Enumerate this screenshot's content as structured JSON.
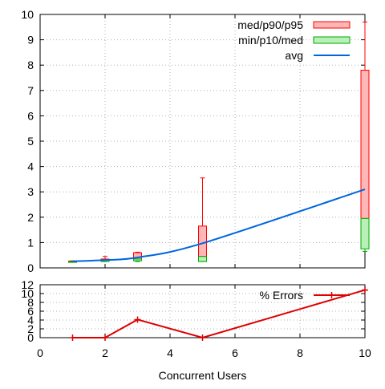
{
  "chart_data": [
    {
      "type": "box",
      "title": "",
      "xlabel": "",
      "ylabel": "",
      "xlim": [
        0,
        10
      ],
      "ylim": [
        0,
        10
      ],
      "xticks": [],
      "yticks": [
        0,
        1,
        2,
        3,
        4,
        5,
        6,
        7,
        8,
        9,
        10
      ],
      "grid": true,
      "legend_position": "top-right",
      "legend": [
        "med/p90/p95",
        "min/p10/med",
        "avg"
      ],
      "x": [
        1,
        2,
        3,
        5,
        10
      ],
      "series": [
        {
          "name": "med/p90/p95",
          "median": [
            0.25,
            0.3,
            0.35,
            0.45,
            1.95
          ],
          "p90": [
            0.27,
            0.35,
            0.6,
            1.65,
            7.8
          ],
          "p95": [
            0.28,
            0.45,
            0.62,
            3.55,
            9.7
          ],
          "color": "#ff0000",
          "fill": "#ffb6b6"
        },
        {
          "name": "min/p10/med",
          "min": [
            0.25,
            0.25,
            0.25,
            0.25,
            0.65
          ],
          "p10": [
            0.25,
            0.25,
            0.28,
            0.25,
            0.75
          ],
          "median": [
            0.25,
            0.3,
            0.35,
            0.45,
            1.95
          ],
          "color": "#00aa00",
          "fill": "#b8f0b8"
        },
        {
          "name": "avg",
          "values": [
            0.26,
            0.31,
            0.41,
            0.97,
            3.1
          ],
          "color": "#0066dd"
        }
      ]
    },
    {
      "type": "line",
      "title": "",
      "xlabel": "Concurrent Users",
      "ylabel": "",
      "xlim": [
        0,
        10
      ],
      "ylim": [
        0,
        12
      ],
      "xticks": [
        0,
        2,
        4,
        6,
        8,
        10
      ],
      "yticks": [
        0,
        2,
        4,
        6,
        8,
        10,
        12
      ],
      "grid": true,
      "legend_position": "top-right",
      "legend": [
        "% Errors"
      ],
      "x": [
        1,
        2,
        3,
        5,
        10
      ],
      "series": [
        {
          "name": "% Errors",
          "values": [
            0,
            0,
            4.1,
            0,
            10.8
          ],
          "color": "#dd0000"
        }
      ]
    }
  ]
}
